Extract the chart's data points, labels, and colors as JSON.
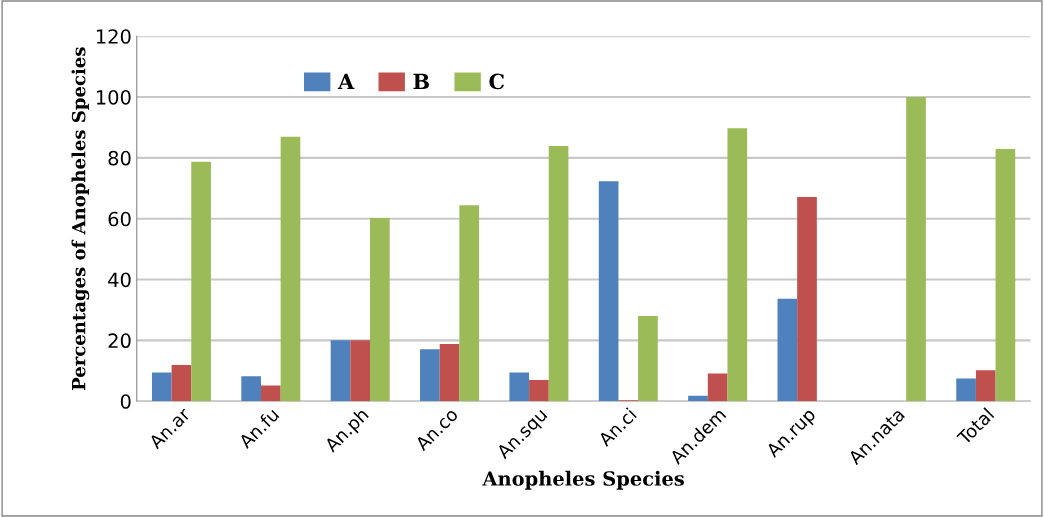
{
  "chart_data": {
    "type": "bar",
    "xlabel": "Anopheles Species",
    "ylabel": "Percentages of Anopheles Species",
    "categories": [
      "An.ar",
      "An.fu",
      "An.ph",
      "An.co",
      "An.squ",
      "An.ci",
      "An.dem",
      "An.rup",
      "An.nata",
      "Total"
    ],
    "series": [
      {
        "name": "A",
        "color": "#4f81bd",
        "values": [
          9.4,
          8.2,
          20,
          17.1,
          9.4,
          72.3,
          1.8,
          33.7,
          0,
          7.5
        ]
      },
      {
        "name": "B",
        "color": "#c0504d",
        "values": [
          11.9,
          5.2,
          20,
          18.8,
          7,
          0.3,
          9.1,
          67.1,
          0,
          10.2
        ]
      },
      {
        "name": "C",
        "color": "#9bbb59",
        "values": [
          78.7,
          86.9,
          60.2,
          64.4,
          83.9,
          28,
          89.7,
          0,
          100,
          82.9
        ]
      }
    ],
    "ylim": [
      0,
      120
    ],
    "yticks": [
      0,
      20,
      40,
      60,
      80,
      100,
      120
    ],
    "grid": "y",
    "legend": "top"
  }
}
